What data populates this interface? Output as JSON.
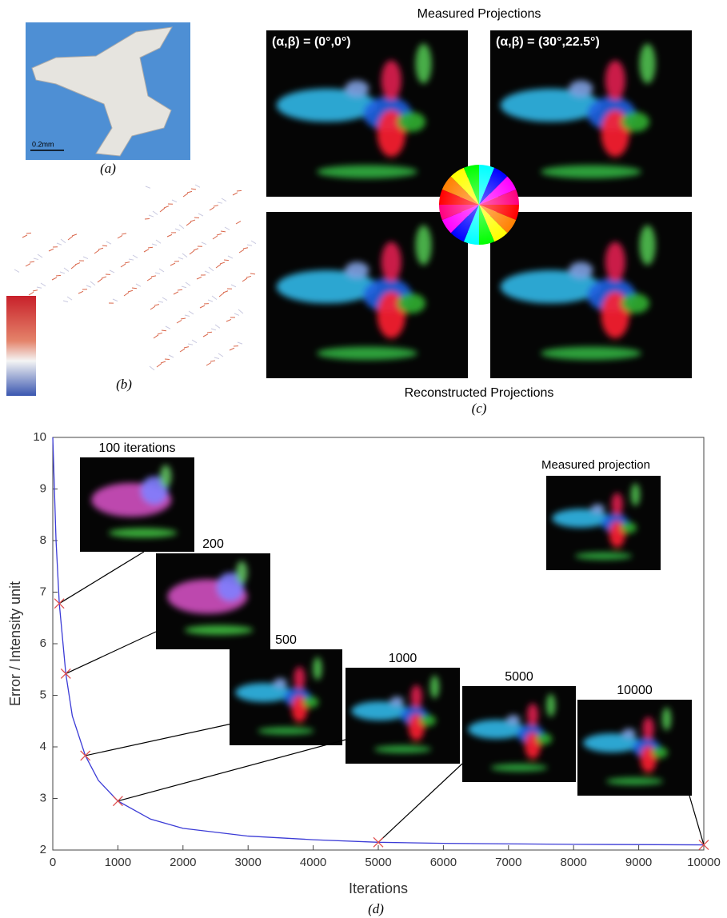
{
  "figure": {
    "panel_a": {
      "scale_bar": "0.2mm",
      "caption": "(a)"
    },
    "panel_b": {
      "caption": "(b)"
    },
    "panel_c": {
      "title_top": "Measured Projections",
      "angles": [
        "(α,β) = (0°,0°)",
        "(α,β) = (30°,22.5°)"
      ],
      "title_bottom": "Reconstructed Projections",
      "caption": "(c)"
    }
  },
  "chart_data": {
    "type": "line",
    "x_label": "Iterations",
    "y_label": "Error / Intensity unit",
    "caption": "(d)",
    "x": [
      0,
      50,
      100,
      200,
      300,
      500,
      700,
      1000,
      1500,
      2000,
      3000,
      4000,
      5000,
      6000,
      8000,
      10000
    ],
    "values": [
      10,
      8,
      6.78,
      5.42,
      4.6,
      3.83,
      3.35,
      2.95,
      2.6,
      2.42,
      2.27,
      2.2,
      2.15,
      2.13,
      2.11,
      2.1
    ],
    "color": "#3b3bd6",
    "markers": {
      "x": [
        100,
        200,
        500,
        1000,
        5000,
        10000
      ],
      "values": [
        6.78,
        5.42,
        3.83,
        2.95,
        2.15,
        2.1
      ],
      "color": "#e05050"
    },
    "snapshot_labels": [
      "100 iterations",
      "200",
      "500",
      "1000",
      "5000",
      "10000"
    ],
    "reference_label": "Measured projection",
    "xlim": [
      0,
      10000
    ],
    "xticks": [
      0,
      1000,
      2000,
      3000,
      4000,
      5000,
      6000,
      7000,
      8000,
      9000,
      10000
    ],
    "ylim": [
      2,
      10
    ],
    "yticks": [
      2,
      3,
      4,
      5,
      6,
      7,
      8,
      9,
      10
    ]
  }
}
